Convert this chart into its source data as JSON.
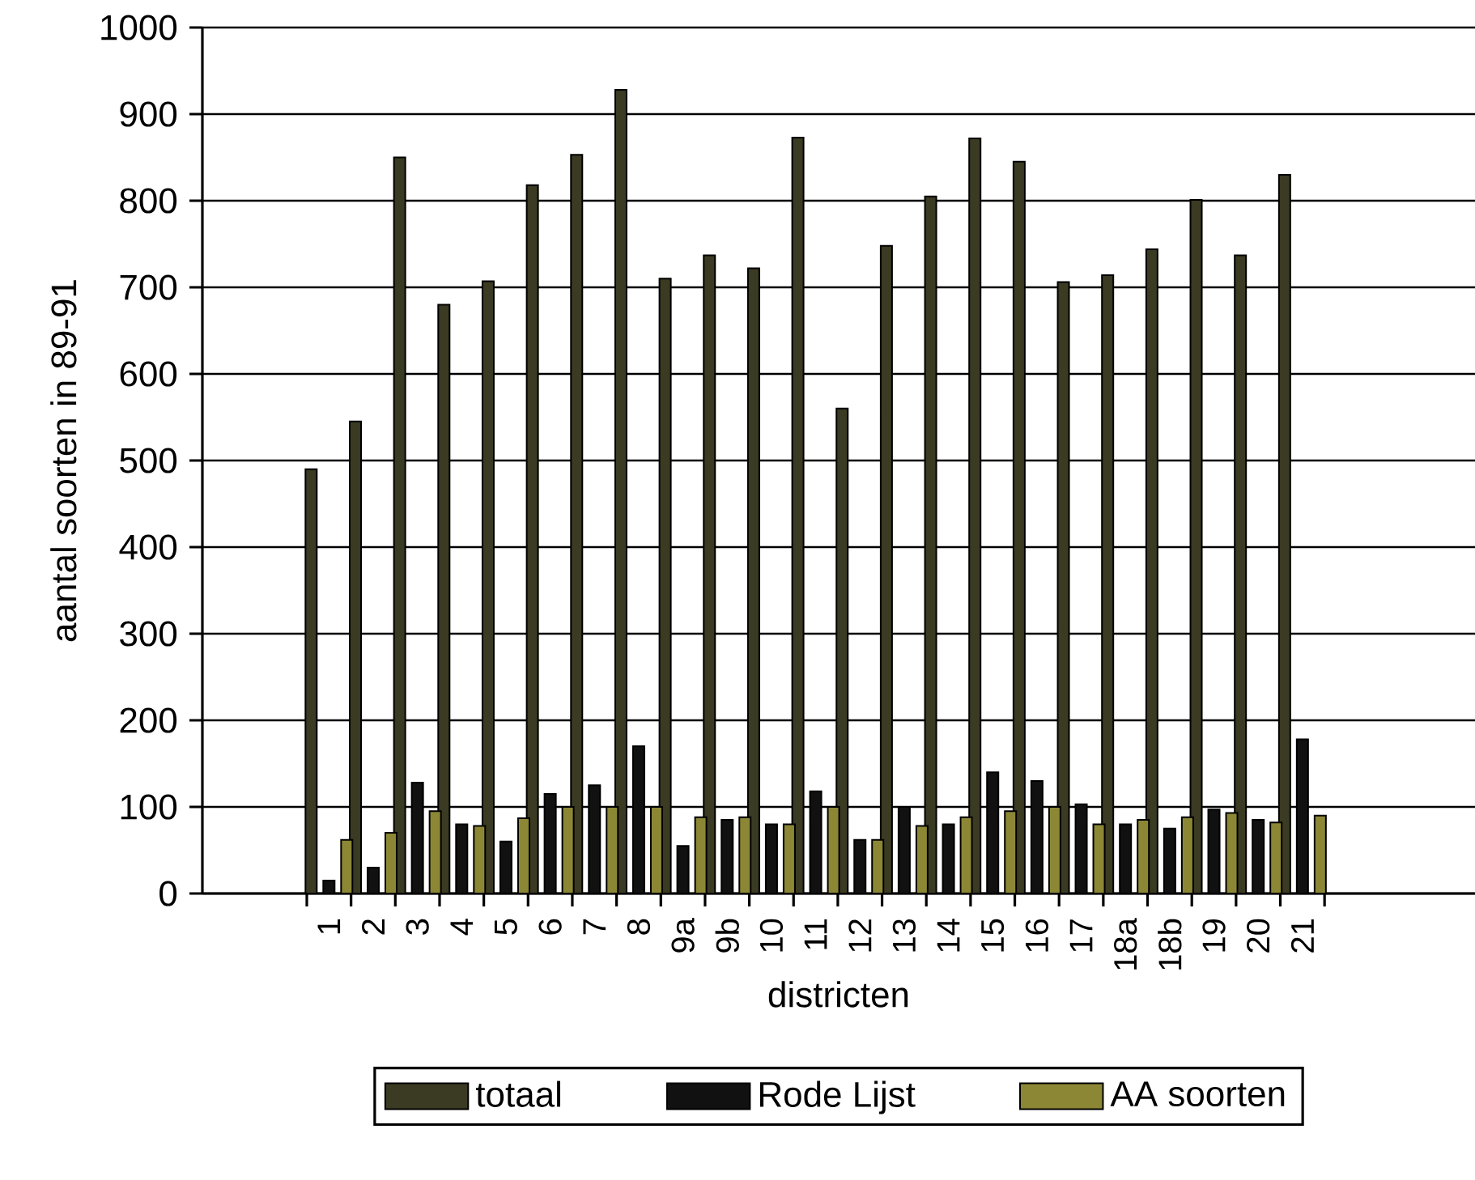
{
  "chart_data": {
    "type": "bar",
    "xlabel": "districten",
    "ylabel": "aantal soorten in 89-91",
    "categories": [
      "1",
      "2",
      "3",
      "4",
      "5",
      "6",
      "7",
      "8",
      "9a",
      "9b",
      "10",
      "11",
      "12",
      "13",
      "14",
      "15",
      "16",
      "17",
      "18a",
      "18b",
      "19",
      "20",
      "21"
    ],
    "series": [
      {
        "name": "totaal",
        "color": "#3b3a22",
        "values": [
          490,
          545,
          850,
          680,
          707,
          818,
          853,
          928,
          710,
          737,
          722,
          873,
          560,
          748,
          805,
          872,
          845,
          706,
          714,
          744,
          801,
          737,
          830
        ]
      },
      {
        "name": "Rode Lijst",
        "color": "#111111",
        "values": [
          15,
          30,
          128,
          80,
          60,
          115,
          125,
          170,
          55,
          85,
          80,
          118,
          62,
          100,
          80,
          140,
          130,
          103,
          80,
          75,
          97,
          85,
          178
        ]
      },
      {
        "name": "AA soorten",
        "color": "#8c8735",
        "values": [
          62,
          70,
          95,
          78,
          87,
          100,
          100,
          100,
          88,
          88,
          80,
          100,
          62,
          78,
          88,
          95,
          100,
          80,
          85,
          88,
          93,
          82,
          90
        ]
      }
    ],
    "ylim": [
      0,
      1000
    ],
    "yticks": [
      0,
      100,
      200,
      300,
      400,
      500,
      600,
      700,
      800,
      900,
      1000
    ],
    "grid": "y",
    "legend": "bottom"
  }
}
